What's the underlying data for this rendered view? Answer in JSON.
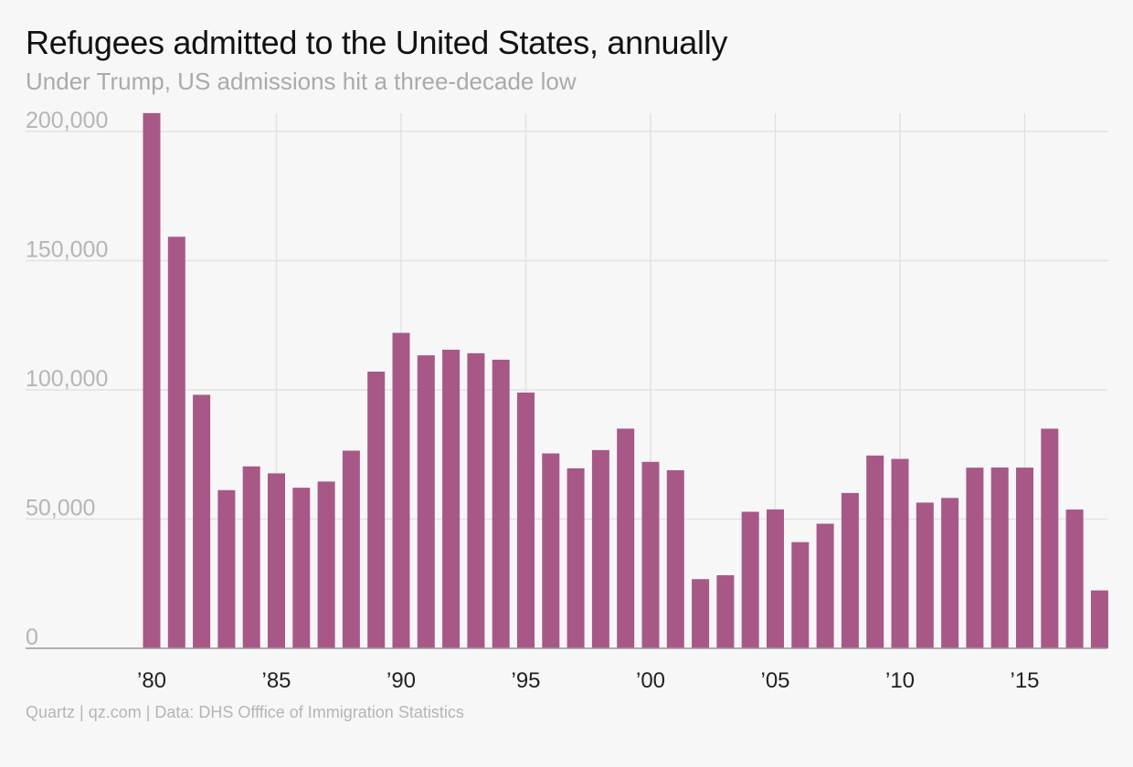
{
  "title": "Refugees admitted to the United States, annually",
  "subtitle": "Under Trump, US admissions hit a three-decade low",
  "source": "Quartz | qz.com | Data: DHS Offfice of Immigration Statistics",
  "colors": {
    "bar": "#a85886",
    "grid": "#e2e2e2",
    "axis": "#999999",
    "background": "#f7f7f7"
  },
  "chart_data": {
    "type": "bar",
    "title": "Refugees admitted to the United States, annually",
    "subtitle": "Under Trump, US admissions hit a three-decade low",
    "xlabel": "",
    "ylabel": "",
    "ylim": [
      0,
      200000
    ],
    "grid": true,
    "categories": [
      1980,
      1981,
      1982,
      1983,
      1984,
      1985,
      1986,
      1987,
      1988,
      1989,
      1990,
      1991,
      1992,
      1993,
      1994,
      1995,
      1996,
      1997,
      1998,
      1999,
      2000,
      2001,
      2002,
      2003,
      2004,
      2005,
      2006,
      2007,
      2008,
      2009,
      2010,
      2011,
      2012,
      2013,
      2014,
      2015,
      2016,
      2017,
      2018
    ],
    "values": [
      207116,
      159252,
      98096,
      61218,
      70393,
      67704,
      62146,
      64528,
      76483,
      107070,
      122066,
      113389,
      115548,
      114181,
      111680,
      98973,
      75421,
      69653,
      76712,
      85010,
      72165,
      68920,
      26765,
      28286,
      52840,
      53738,
      41094,
      48218,
      60107,
      74602,
      73293,
      56384,
      58179,
      69909,
      69975,
      69920,
      84989,
      53691,
      22405
    ],
    "y_ticks": [
      {
        "value": 0,
        "label": "0"
      },
      {
        "value": 50000,
        "label": "50,000"
      },
      {
        "value": 100000,
        "label": "100,000"
      },
      {
        "value": 150000,
        "label": "150,000"
      },
      {
        "value": 200000,
        "label": "200,000"
      }
    ],
    "x_ticks": [
      {
        "value": 1980,
        "label": "’80"
      },
      {
        "value": 1985,
        "label": "’85"
      },
      {
        "value": 1990,
        "label": "’90"
      },
      {
        "value": 1995,
        "label": "’95"
      },
      {
        "value": 2000,
        "label": "’00"
      },
      {
        "value": 2005,
        "label": "’05"
      },
      {
        "value": 2010,
        "label": "’10"
      },
      {
        "value": 2015,
        "label": "’15"
      }
    ]
  }
}
